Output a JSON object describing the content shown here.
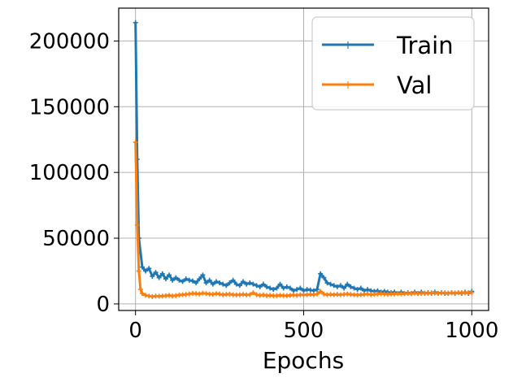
{
  "chart_data": {
    "type": "line",
    "title": "",
    "xlabel": "Epochs",
    "ylabel": "",
    "xlim": [
      -50,
      1050
    ],
    "ylim": [
      -5000,
      225000
    ],
    "xticks": [
      0,
      500,
      1000
    ],
    "yticks": [
      0,
      50000,
      100000,
      150000,
      200000
    ],
    "xtick_labels": [
      "0",
      "500",
      "1000"
    ],
    "ytick_labels": [
      "0",
      "50000",
      "100000",
      "150000",
      "200000"
    ],
    "grid": true,
    "legend_position": "top-right",
    "series": [
      {
        "name": "Train",
        "color": "#1f77b4",
        "marker": "plus",
        "x": [
          0,
          5,
          10,
          20,
          30,
          40,
          50,
          60,
          70,
          80,
          90,
          100,
          110,
          120,
          130,
          140,
          150,
          160,
          170,
          180,
          190,
          200,
          210,
          220,
          230,
          240,
          250,
          260,
          270,
          280,
          290,
          300,
          310,
          320,
          330,
          340,
          350,
          360,
          370,
          380,
          390,
          400,
          410,
          420,
          430,
          440,
          450,
          460,
          470,
          480,
          490,
          500,
          510,
          520,
          530,
          540,
          550,
          560,
          570,
          580,
          590,
          600,
          610,
          620,
          630,
          640,
          650,
          660,
          670,
          680,
          690,
          700,
          710,
          720,
          730,
          740,
          750,
          760,
          770,
          780,
          790,
          800,
          810,
          820,
          830,
          840,
          850,
          860,
          870,
          880,
          890,
          900,
          910,
          920,
          930,
          940,
          950,
          960,
          970,
          980,
          990,
          1000
        ],
        "y": [
          214000,
          110000,
          50000,
          28000,
          25000,
          27000,
          21000,
          24000,
          20000,
          23000,
          19000,
          22000,
          18000,
          20000,
          18000,
          17000,
          19000,
          18000,
          17500,
          16000,
          19000,
          22000,
          16000,
          18000,
          15000,
          17000,
          16000,
          15000,
          14000,
          16000,
          18000,
          15000,
          14000,
          17000,
          15000,
          16000,
          15000,
          14000,
          13000,
          15000,
          13000,
          12000,
          11000,
          12000,
          15000,
          12000,
          13000,
          12000,
          10000,
          11000,
          12000,
          10000,
          11000,
          10500,
          10000,
          11000,
          23000,
          20000,
          16000,
          15000,
          14000,
          13000,
          14000,
          12000,
          15000,
          13000,
          12000,
          11000,
          12000,
          10000,
          11000,
          10000,
          9500,
          10000,
          9000,
          9500,
          9000,
          8500,
          9000,
          8000,
          9000,
          8000,
          8500,
          8000,
          9000,
          8000,
          9000,
          8000,
          8500,
          8000,
          9000,
          8000,
          8500,
          8000,
          8000,
          8500,
          8000,
          8500,
          8000,
          9000,
          8000,
          9500
        ]
      },
      {
        "name": "Val",
        "color": "#ff7f0e",
        "marker": "plus",
        "x": [
          0,
          5,
          10,
          15,
          20,
          30,
          40,
          50,
          60,
          70,
          80,
          90,
          100,
          110,
          120,
          130,
          140,
          150,
          160,
          170,
          180,
          190,
          200,
          210,
          220,
          230,
          240,
          250,
          260,
          270,
          280,
          290,
          300,
          310,
          320,
          330,
          340,
          350,
          360,
          370,
          380,
          390,
          400,
          410,
          420,
          430,
          440,
          450,
          460,
          470,
          480,
          490,
          500,
          510,
          520,
          530,
          540,
          550,
          560,
          570,
          580,
          590,
          600,
          610,
          620,
          630,
          640,
          650,
          660,
          670,
          680,
          690,
          700,
          710,
          720,
          730,
          740,
          750,
          760,
          770,
          780,
          790,
          800,
          810,
          820,
          830,
          840,
          850,
          860,
          870,
          880,
          890,
          900,
          910,
          920,
          930,
          940,
          950,
          960,
          970,
          980,
          990,
          1000
        ],
        "y": [
          123000,
          60000,
          25000,
          11000,
          8000,
          6500,
          6000,
          5500,
          6000,
          5800,
          6000,
          6200,
          6500,
          6000,
          6300,
          6800,
          7000,
          7200,
          7500,
          8000,
          7800,
          7500,
          8200,
          7800,
          7500,
          7300,
          7800,
          7500,
          7000,
          7200,
          7400,
          7000,
          6800,
          7000,
          7200,
          6900,
          7000,
          8500,
          7000,
          6500,
          6800,
          6300,
          6500,
          6200,
          6300,
          6500,
          6400,
          6300,
          6500,
          6800,
          6500,
          7000,
          6800,
          7000,
          7200,
          7000,
          7500,
          9500,
          7500,
          7000,
          7200,
          7000,
          7200,
          7000,
          7300,
          7500,
          7200,
          7000,
          6800,
          7000,
          7200,
          7500,
          7000,
          7300,
          7500,
          7800,
          7500,
          7300,
          7600,
          7500,
          7800,
          7600,
          7800,
          8000,
          7800,
          8200,
          7900,
          8000,
          8300,
          8000,
          8500,
          8200,
          8000,
          8300,
          8500,
          8200,
          8400,
          8300,
          8500,
          8600,
          8400,
          8500,
          8700
        ]
      }
    ]
  }
}
